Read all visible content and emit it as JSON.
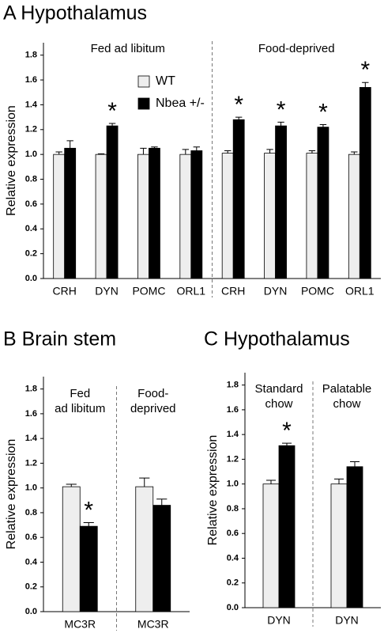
{
  "chart_data": [
    {
      "type": "bar",
      "title": "A Hypothalamus",
      "ylabel": "Relative expression",
      "groups": [
        [
          "Fed ad libitum"
        ],
        [
          "Food-deprived"
        ]
      ],
      "categories": [
        "CRH",
        "DYN",
        "POMC",
        "ORL1",
        "CRH",
        "DYN",
        "POMC",
        "ORL1"
      ],
      "series": [
        {
          "name": "WT",
          "color": "#eeeeee",
          "values": [
            1.0,
            1.0,
            1.0,
            1.0,
            1.01,
            1.01,
            1.01,
            1.0
          ],
          "errors": [
            0.02,
            0.005,
            0.05,
            0.04,
            0.02,
            0.03,
            0.02,
            0.02
          ]
        },
        {
          "name": "Nbea +/-",
          "color": "#000000",
          "values": [
            1.05,
            1.23,
            1.05,
            1.03,
            1.28,
            1.23,
            1.22,
            1.54
          ],
          "errors": [
            0.06,
            0.02,
            0.01,
            0.03,
            0.02,
            0.03,
            0.02,
            0.04
          ],
          "significance": [
            null,
            "*",
            null,
            null,
            "*",
            "*",
            "*",
            "*"
          ]
        }
      ],
      "legend": "upper left",
      "ylim": [
        0,
        1.9
      ],
      "yticks": [
        {
          "value": 0,
          "label": "0.0"
        },
        0.2,
        0.4,
        0.6,
        0.8,
        {
          "value": 1,
          "label": "1.0"
        },
        1.2,
        1.4,
        1.6,
        1.8
      ]
    },
    {
      "type": "bar",
      "title": "B Brain stem",
      "ylabel": "Relative expression",
      "groups": [
        [
          "Fed",
          "ad libitum"
        ],
        [
          "Food-",
          "deprived"
        ]
      ],
      "categories": [
        "MC3R",
        "MC3R"
      ],
      "series": [
        {
          "color": "#eeeeee",
          "values": [
            1.01,
            1.01
          ],
          "errors": [
            0.02,
            0.07
          ]
        },
        {
          "color": "#000000",
          "values": [
            0.69,
            0.86
          ],
          "errors": [
            0.03,
            0.05
          ],
          "significance": [
            "*",
            null
          ]
        }
      ],
      "ylim": [
        0,
        1.9
      ],
      "yticks": [
        {
          "value": 0,
          "label": "0.0"
        },
        0.2,
        0.4,
        0.6,
        0.8,
        {
          "value": 1,
          "label": "1.0"
        },
        1.2,
        1.4,
        1.6,
        1.8
      ]
    },
    {
      "type": "bar",
      "title": "C Hypothalamus",
      "ylabel": "Relative expression",
      "groups": [
        [
          "Standard",
          "chow"
        ],
        [
          "Palatable",
          "chow"
        ]
      ],
      "categories": [
        "DYN",
        "DYN"
      ],
      "series": [
        {
          "color": "#eeeeee",
          "values": [
            1.0,
            1.0
          ],
          "errors": [
            0.03,
            0.04
          ]
        },
        {
          "color": "#000000",
          "values": [
            1.31,
            1.14
          ],
          "errors": [
            0.02,
            0.04
          ],
          "significance": [
            "*",
            null
          ]
        }
      ],
      "ylim": [
        0,
        1.9
      ],
      "yticks": [
        {
          "value": 0,
          "label": "0.0"
        },
        0.2,
        0.4,
        0.6,
        0.8,
        {
          "value": 1,
          "label": "1.0"
        },
        1.2,
        1.4,
        1.6,
        1.8
      ]
    }
  ]
}
